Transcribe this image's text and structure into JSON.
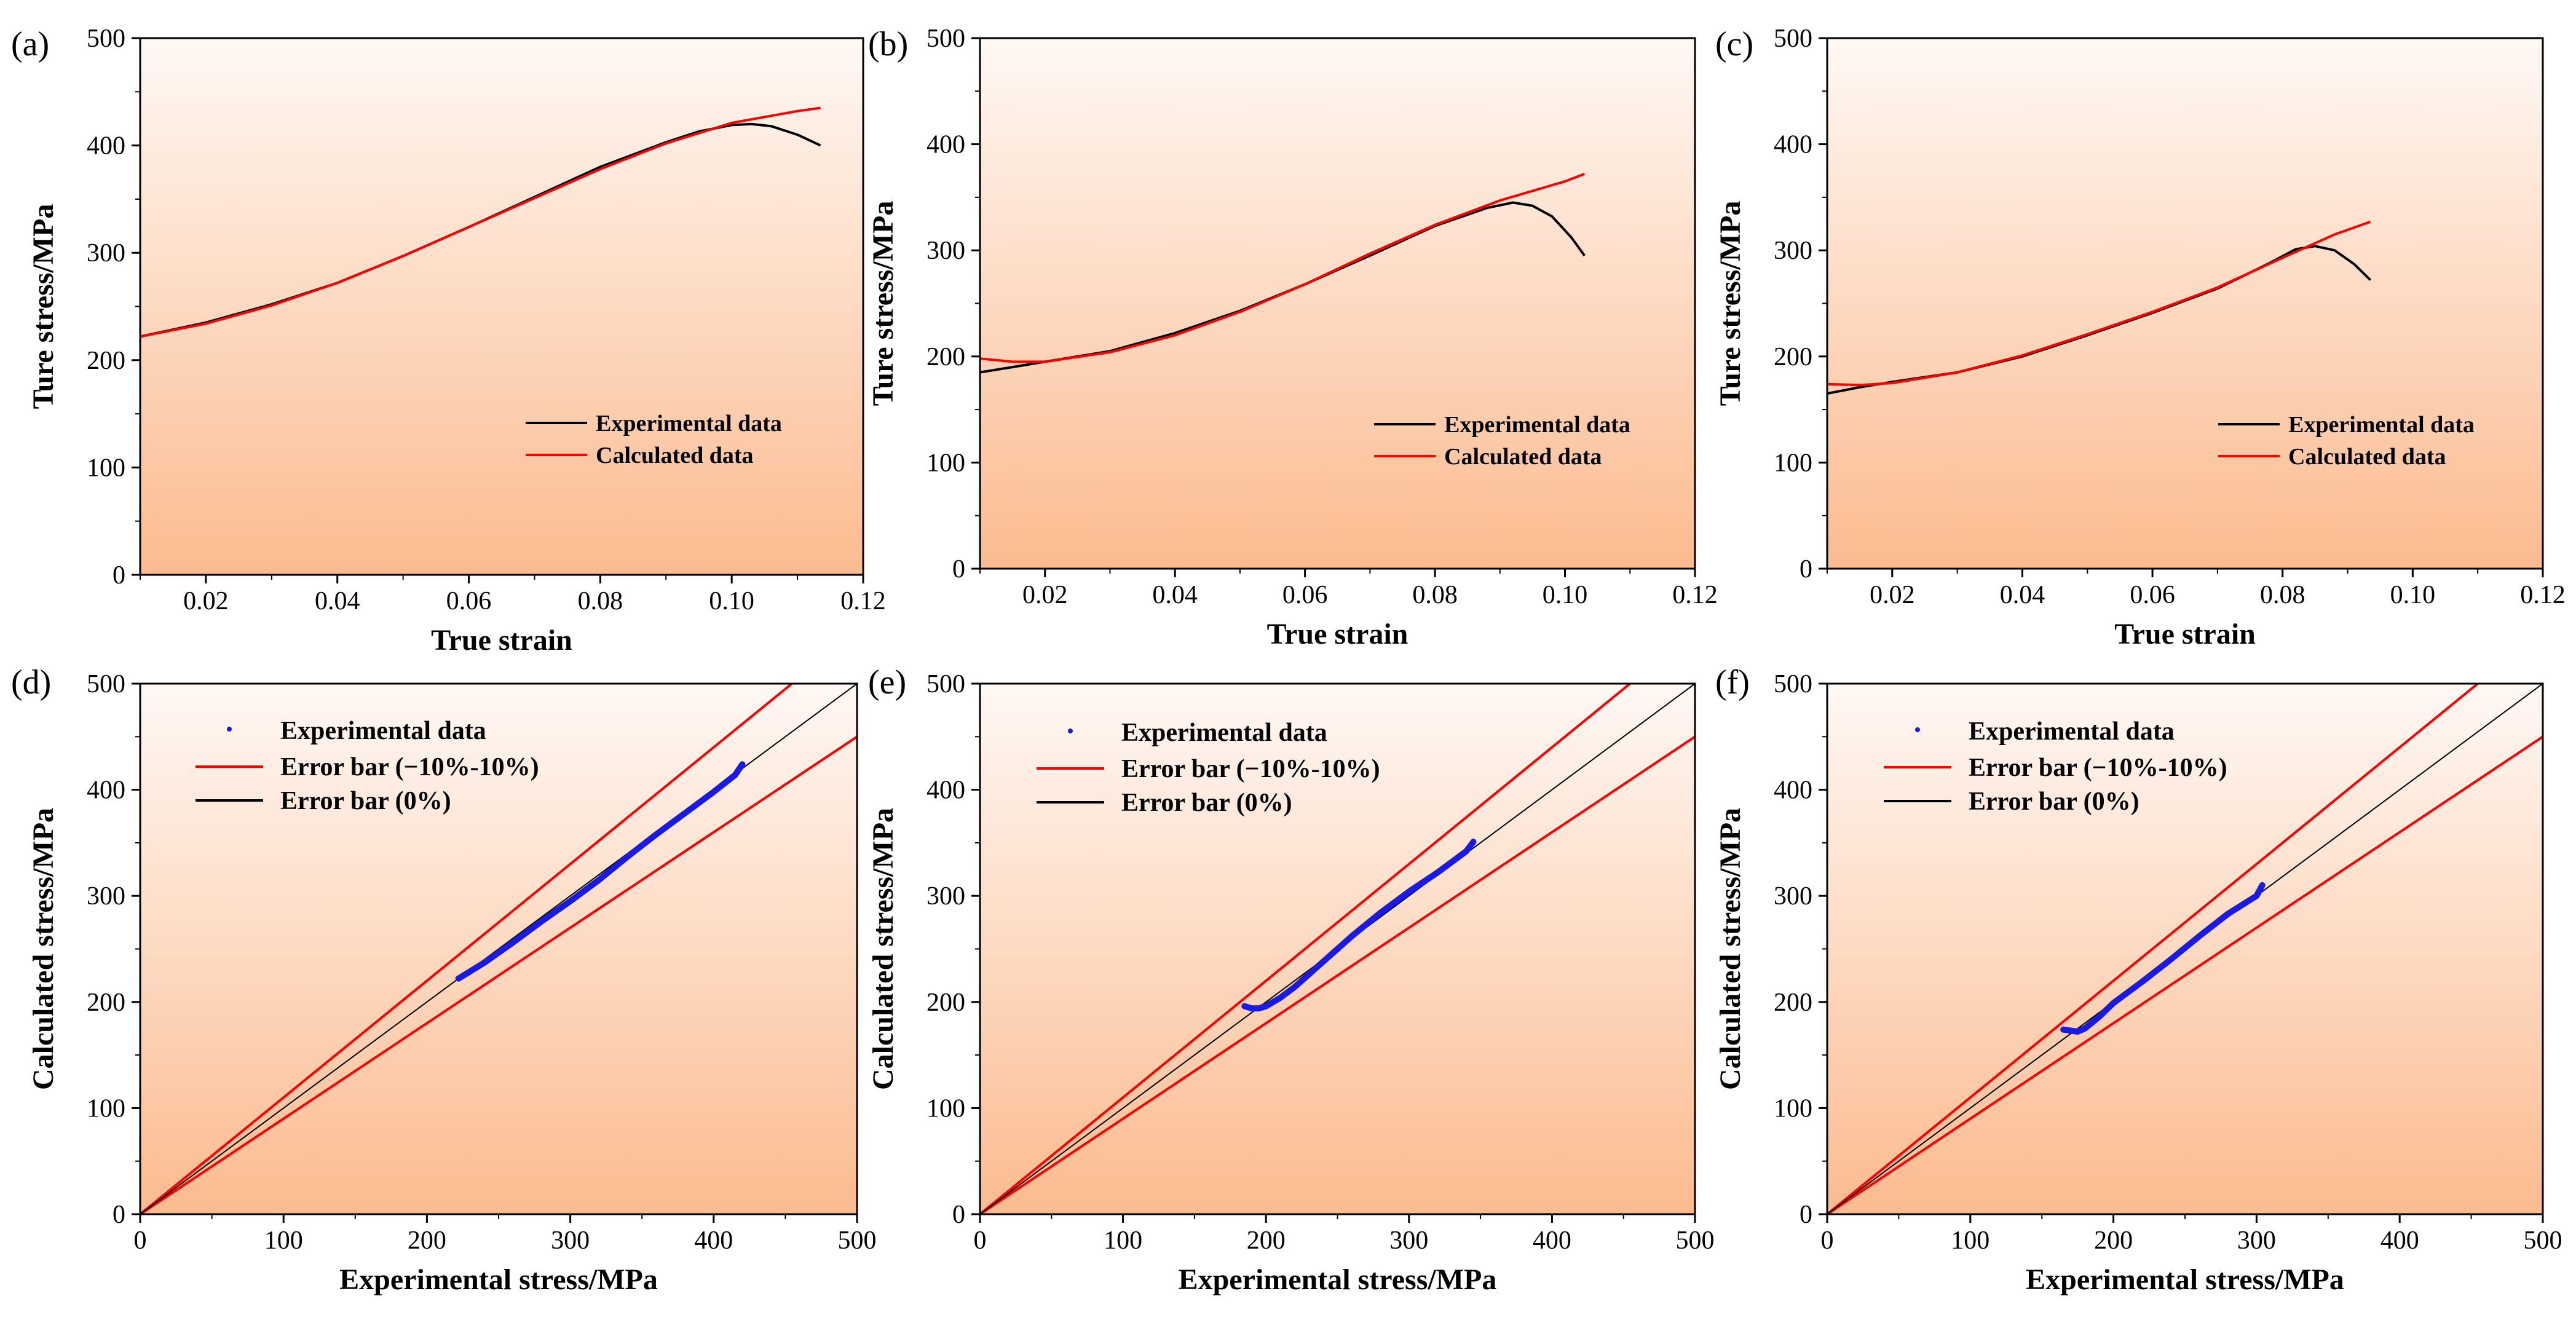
{
  "chart_data": [
    {
      "panel": "(a)",
      "type": "line",
      "xlabel": "True strain",
      "ylabel": "Ture stress/MPa",
      "xlim": [
        0.01,
        0.12
      ],
      "ylim": [
        0,
        500
      ],
      "xticks": [
        0.02,
        0.04,
        0.06,
        0.08,
        0.1,
        0.12
      ],
      "xtick_labels": [
        "0.02",
        "0.04",
        "0.06",
        "0.08",
        "0.10",
        "0.12"
      ],
      "yticks": [
        0,
        100,
        200,
        300,
        400,
        500
      ],
      "ytick_labels": [
        "0",
        "100",
        "200",
        "300",
        "400",
        "500"
      ],
      "legend_position": "lower-right",
      "series": [
        {
          "name": "Experimental data",
          "color": "#000000",
          "x": [
            0.01,
            0.02,
            0.03,
            0.04,
            0.05,
            0.06,
            0.07,
            0.08,
            0.09,
            0.095,
            0.1,
            0.103,
            0.106,
            0.11,
            0.1135
          ],
          "y": [
            222,
            235,
            252,
            272,
            297,
            324,
            352,
            380,
            403,
            413,
            419,
            420,
            418,
            410,
            400
          ]
        },
        {
          "name": "Calculated data",
          "color": "#ff0000",
          "x": [
            0.01,
            0.02,
            0.03,
            0.04,
            0.05,
            0.06,
            0.07,
            0.08,
            0.09,
            0.1,
            0.11,
            0.1135
          ],
          "y": [
            222,
            234,
            251,
            272,
            297,
            324,
            351,
            378,
            402,
            421,
            432,
            435
          ]
        }
      ]
    },
    {
      "panel": "(b)",
      "type": "line",
      "xlabel": "True strain",
      "ylabel": "Ture stress/MPa",
      "xlim": [
        0.01,
        0.12
      ],
      "ylim": [
        0,
        500
      ],
      "xticks": [
        0.02,
        0.04,
        0.06,
        0.08,
        0.1,
        0.12
      ],
      "xtick_labels": [
        "0.02",
        "0.04",
        "0.06",
        "0.08",
        "0.10",
        "0.12"
      ],
      "yticks": [
        0,
        100,
        200,
        300,
        400,
        500
      ],
      "ytick_labels": [
        "0",
        "100",
        "200",
        "300",
        "400",
        "500"
      ],
      "legend_position": "lower-right",
      "series": [
        {
          "name": "Experimental data",
          "color": "#000000",
          "x": [
            0.01,
            0.015,
            0.02,
            0.03,
            0.04,
            0.05,
            0.06,
            0.07,
            0.08,
            0.088,
            0.092,
            0.095,
            0.098,
            0.101,
            0.103
          ],
          "y": [
            185,
            190,
            195,
            205,
            222,
            243,
            268,
            295,
            323,
            340,
            345,
            342,
            332,
            312,
            295
          ]
        },
        {
          "name": "Calculated data",
          "color": "#ff0000",
          "x": [
            0.01,
            0.015,
            0.02,
            0.03,
            0.04,
            0.05,
            0.06,
            0.07,
            0.08,
            0.09,
            0.1,
            0.103
          ],
          "y": [
            198,
            195,
            195,
            204,
            220,
            242,
            268,
            297,
            324,
            347,
            365,
            372
          ]
        }
      ]
    },
    {
      "panel": "(c)",
      "type": "line",
      "xlabel": "True strain",
      "ylabel": "Ture stress/MPa",
      "xlim": [
        0.01,
        0.12
      ],
      "ylim": [
        0,
        500
      ],
      "xticks": [
        0.02,
        0.04,
        0.06,
        0.08,
        0.1,
        0.12
      ],
      "xtick_labels": [
        "0.02",
        "0.04",
        "0.06",
        "0.08",
        "0.10",
        "0.12"
      ],
      "yticks": [
        0,
        100,
        200,
        300,
        400,
        500
      ],
      "ytick_labels": [
        "0",
        "100",
        "200",
        "300",
        "400",
        "500"
      ],
      "legend_position": "lower-right",
      "series": [
        {
          "name": "Experimental data",
          "color": "#000000",
          "x": [
            0.01,
            0.015,
            0.02,
            0.03,
            0.04,
            0.05,
            0.06,
            0.07,
            0.078,
            0.082,
            0.085,
            0.088,
            0.091,
            0.0935
          ],
          "y": [
            165,
            171,
            176,
            185,
            200,
            220,
            241,
            264,
            288,
            301,
            304,
            300,
            287,
            272
          ]
        },
        {
          "name": "Calculated data",
          "color": "#ff0000",
          "x": [
            0.01,
            0.015,
            0.02,
            0.03,
            0.04,
            0.05,
            0.06,
            0.07,
            0.08,
            0.088,
            0.0935
          ],
          "y": [
            174,
            173,
            175,
            185,
            201,
            221,
            242,
            265,
            293,
            315,
            327
          ]
        }
      ]
    },
    {
      "panel": "(d)",
      "type": "scatter",
      "xlabel": "Experimental stress/MPa",
      "ylabel": "Calculated stress/MPa",
      "xlim": [
        0,
        500
      ],
      "ylim": [
        0,
        500
      ],
      "xticks": [
        0,
        100,
        200,
        300,
        400,
        500
      ],
      "xtick_labels": [
        "0",
        "100",
        "200",
        "300",
        "400",
        "500"
      ],
      "yticks": [
        0,
        100,
        200,
        300,
        400,
        500
      ],
      "ytick_labels": [
        "0",
        "100",
        "200",
        "300",
        "400",
        "500"
      ],
      "legend_position": "top-left",
      "reference_lines": [
        {
          "name": "Error bar (−10%-10%)",
          "color": "#ff0000",
          "slopes": [
            1.1,
            0.9
          ]
        },
        {
          "name": "Error bar (0%)",
          "color": "#000000",
          "slopes": [
            1.0
          ]
        }
      ],
      "series": [
        {
          "name": "Experimental data",
          "color": "#1a1ae6",
          "x": [
            222,
            240,
            260,
            280,
            300,
            320,
            340,
            360,
            380,
            400,
            415,
            420
          ],
          "y": [
            222,
            237,
            256,
            276,
            295,
            315,
            337,
            358,
            378,
            398,
            414,
            424
          ]
        }
      ]
    },
    {
      "panel": "(e)",
      "type": "scatter",
      "xlabel": "Experimental stress/MPa",
      "ylabel": "Calculated stress/MPa",
      "xlim": [
        0,
        500
      ],
      "ylim": [
        0,
        500
      ],
      "xticks": [
        0,
        100,
        200,
        300,
        400,
        500
      ],
      "xtick_labels": [
        "0",
        "100",
        "200",
        "300",
        "400",
        "500"
      ],
      "yticks": [
        0,
        100,
        200,
        300,
        400,
        500
      ],
      "ytick_labels": [
        "0",
        "100",
        "200",
        "300",
        "400",
        "500"
      ],
      "legend_position": "top-left",
      "reference_lines": [
        {
          "name": "Error bar (−10%-10%)",
          "color": "#ff0000",
          "slopes": [
            1.1,
            0.9
          ]
        },
        {
          "name": "Error bar (0%)",
          "color": "#000000",
          "slopes": [
            1.0
          ]
        }
      ],
      "series": [
        {
          "name": "Experimental data",
          "color": "#1a1ae6",
          "x": [
            185,
            190,
            195,
            200,
            210,
            220,
            240,
            260,
            280,
            300,
            320,
            340,
            345
          ],
          "y": [
            196,
            194,
            194,
            196,
            204,
            214,
            238,
            262,
            284,
            304,
            322,
            342,
            351
          ]
        }
      ]
    },
    {
      "panel": "(f)",
      "type": "scatter",
      "xlabel": "Experimental stress/MPa",
      "ylabel": "Calculated stress/MPa",
      "xlim": [
        0,
        500
      ],
      "ylim": [
        0,
        500
      ],
      "xticks": [
        0,
        100,
        200,
        300,
        400,
        500
      ],
      "xtick_labels": [
        "0",
        "100",
        "200",
        "300",
        "400",
        "500"
      ],
      "yticks": [
        0,
        100,
        200,
        300,
        400,
        500
      ],
      "ytick_labels": [
        "0",
        "100",
        "200",
        "300",
        "400",
        "500"
      ],
      "legend_position": "top-left",
      "reference_lines": [
        {
          "name": "Error bar (−10%-10%)",
          "color": "#ff0000",
          "slopes": [
            1.1,
            0.9
          ]
        },
        {
          "name": "Error bar (0%)",
          "color": "#000000",
          "slopes": [
            1.0
          ]
        }
      ],
      "series": [
        {
          "name": "Experimental data",
          "color": "#1a1ae6",
          "x": [
            165,
            170,
            175,
            180,
            190,
            200,
            220,
            240,
            260,
            280,
            300,
            304
          ],
          "y": [
            174,
            173,
            172,
            175,
            186,
            199,
            219,
            240,
            262,
            283,
            300,
            310
          ]
        }
      ]
    }
  ],
  "colors": {
    "background_top": "#fff8f4",
    "background_bottom": "#fbbb8f",
    "axis": "#000000"
  }
}
